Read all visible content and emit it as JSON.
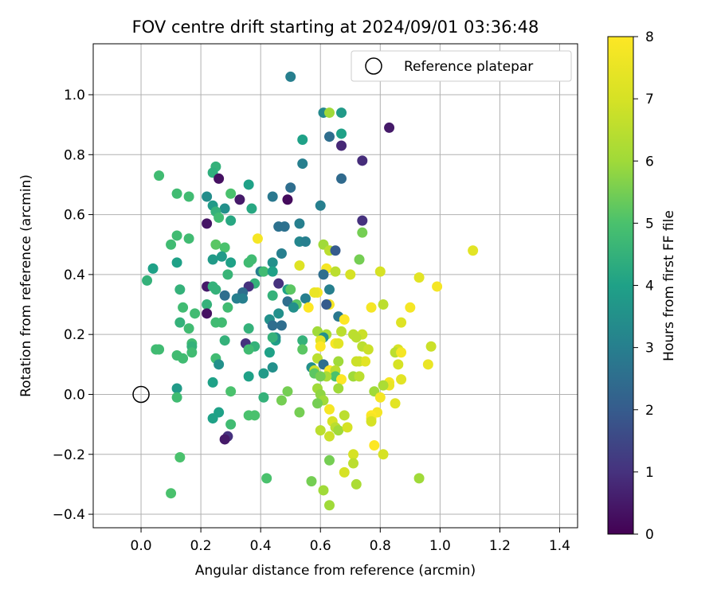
{
  "chart_data": {
    "type": "scatter",
    "title": "FOV centre drift starting at 2024/09/01 03:36:48",
    "xlabel": "Angular distance from reference (arcmin)",
    "ylabel": "Rotation from reference (arcmin)",
    "xlim": [
      -0.16,
      1.46
    ],
    "ylim": [
      -0.445,
      1.17
    ],
    "xticks": [
      "0.0",
      "0.2",
      "0.4",
      "0.6",
      "0.8",
      "1.0",
      "1.2",
      "1.4"
    ],
    "xtick_values": [
      0,
      0.2,
      0.4,
      0.6,
      0.8,
      1.0,
      1.2,
      1.4
    ],
    "yticks": [
      "−0.4",
      "−0.2",
      "0.0",
      "0.2",
      "0.4",
      "0.6",
      "0.8",
      "1.0"
    ],
    "ytick_values": [
      -0.4,
      -0.2,
      0,
      0.2,
      0.4,
      0.6,
      0.8,
      1.0
    ],
    "grid": true,
    "legend": {
      "placement": "top-right",
      "entries": [
        "Reference platepar"
      ]
    },
    "reference_point": {
      "x": 0,
      "y": 0
    },
    "colorbar": {
      "label": "Hours from first FF file",
      "colormap": "viridis",
      "range": [
        0,
        8
      ],
      "ticks": [
        "0",
        "1",
        "2",
        "3",
        "4",
        "5",
        "6",
        "7",
        "8"
      ]
    },
    "points": [
      [
        0.5,
        1.06,
        3.0
      ],
      [
        0.83,
        0.89,
        0.5
      ],
      [
        0.61,
        0.94,
        3.3
      ],
      [
        0.63,
        0.94,
        6.0
      ],
      [
        0.67,
        0.94,
        3.8
      ],
      [
        0.63,
        0.86,
        2.5
      ],
      [
        0.67,
        0.87,
        4.0
      ],
      [
        0.67,
        0.83,
        0.8
      ],
      [
        0.54,
        0.85,
        4.0
      ],
      [
        0.74,
        0.78,
        0.9
      ],
      [
        0.25,
        0.76,
        4.5
      ],
      [
        0.24,
        0.74,
        4.4
      ],
      [
        0.06,
        0.73,
        4.8
      ],
      [
        0.54,
        0.77,
        3.0
      ],
      [
        0.26,
        0.72,
        0.3
      ],
      [
        0.67,
        0.72,
        2.4
      ],
      [
        0.36,
        0.7,
        4.0
      ],
      [
        0.12,
        0.67,
        4.8
      ],
      [
        0.3,
        0.67,
        5.0
      ],
      [
        0.44,
        0.66,
        2.8
      ],
      [
        0.16,
        0.66,
        4.8
      ],
      [
        0.22,
        0.66,
        3.4
      ],
      [
        0.5,
        0.69,
        2.5
      ],
      [
        0.33,
        0.65,
        0.5
      ],
      [
        0.6,
        0.63,
        3.0
      ],
      [
        0.49,
        0.65,
        0.2
      ],
      [
        0.24,
        0.63,
        3.8
      ],
      [
        0.28,
        0.62,
        3.5
      ],
      [
        0.37,
        0.62,
        4.2
      ],
      [
        0.25,
        0.61,
        4.5
      ],
      [
        0.26,
        0.59,
        4.8
      ],
      [
        0.22,
        0.57,
        0.4
      ],
      [
        0.3,
        0.58,
        4.2
      ],
      [
        0.74,
        0.58,
        1.0
      ],
      [
        0.53,
        0.57,
        3.0
      ],
      [
        0.46,
        0.56,
        2.6
      ],
      [
        0.48,
        0.56,
        2.6
      ],
      [
        0.12,
        0.53,
        4.8
      ],
      [
        0.74,
        0.54,
        5.5
      ],
      [
        0.16,
        0.52,
        4.8
      ],
      [
        0.39,
        0.52,
        7.8
      ],
      [
        0.53,
        0.51,
        3.2
      ],
      [
        0.55,
        0.51,
        3.0
      ],
      [
        0.1,
        0.5,
        4.8
      ],
      [
        0.25,
        0.5,
        5.2
      ],
      [
        0.61,
        0.5,
        6.0
      ],
      [
        0.28,
        0.49,
        5.0
      ],
      [
        0.63,
        0.48,
        6.5
      ],
      [
        0.65,
        0.48,
        2.0
      ],
      [
        1.11,
        0.48,
        7.3
      ],
      [
        0.47,
        0.47,
        3.0
      ],
      [
        0.27,
        0.46,
        3.8
      ],
      [
        0.37,
        0.45,
        4.8
      ],
      [
        0.24,
        0.45,
        3.8
      ],
      [
        0.73,
        0.45,
        5.5
      ],
      [
        0.3,
        0.44,
        4.0
      ],
      [
        0.12,
        0.44,
        4.0
      ],
      [
        0.36,
        0.44,
        4.8
      ],
      [
        0.44,
        0.44,
        3.5
      ],
      [
        0.53,
        0.43,
        7.2
      ],
      [
        0.04,
        0.42,
        4.0
      ],
      [
        0.62,
        0.42,
        7.8
      ],
      [
        0.65,
        0.41,
        6.5
      ],
      [
        0.8,
        0.41,
        7.0
      ],
      [
        0.4,
        0.41,
        3.0
      ],
      [
        0.29,
        0.4,
        4.6
      ],
      [
        0.41,
        0.41,
        4.8
      ],
      [
        0.44,
        0.41,
        4.0
      ],
      [
        0.61,
        0.4,
        2.5
      ],
      [
        0.7,
        0.4,
        7.0
      ],
      [
        0.93,
        0.39,
        7.3
      ],
      [
        0.02,
        0.38,
        4.5
      ],
      [
        0.46,
        0.37,
        1.0
      ],
      [
        0.38,
        0.37,
        4.5
      ],
      [
        0.22,
        0.36,
        0.5
      ],
      [
        0.24,
        0.36,
        4.5
      ],
      [
        0.36,
        0.36,
        1.0
      ],
      [
        0.13,
        0.35,
        4.5
      ],
      [
        0.25,
        0.35,
        4.5
      ],
      [
        0.49,
        0.35,
        4.0
      ],
      [
        0.5,
        0.35,
        5.2
      ],
      [
        0.63,
        0.35,
        3.0
      ],
      [
        0.99,
        0.36,
        7.8
      ],
      [
        0.59,
        0.34,
        7.8
      ],
      [
        0.58,
        0.34,
        7.5
      ],
      [
        0.34,
        0.34,
        2.5
      ],
      [
        0.28,
        0.33,
        2.5
      ],
      [
        0.44,
        0.33,
        4.5
      ],
      [
        0.32,
        0.32,
        3.0
      ],
      [
        0.34,
        0.32,
        3.0
      ],
      [
        0.55,
        0.32,
        3.0
      ],
      [
        0.49,
        0.31,
        2.5
      ],
      [
        0.52,
        0.3,
        5.2
      ],
      [
        0.22,
        0.3,
        4.5
      ],
      [
        0.14,
        0.29,
        4.8
      ],
      [
        0.29,
        0.29,
        4.8
      ],
      [
        0.63,
        0.3,
        7.8
      ],
      [
        0.62,
        0.3,
        2.0
      ],
      [
        0.56,
        0.29,
        8.0
      ],
      [
        0.51,
        0.29,
        3.5
      ],
      [
        0.77,
        0.29,
        7.8
      ],
      [
        0.9,
        0.29,
        7.8
      ],
      [
        0.81,
        0.3,
        6.5
      ],
      [
        0.46,
        0.27,
        3.5
      ],
      [
        0.22,
        0.27,
        0.3
      ],
      [
        0.18,
        0.27,
        4.8
      ],
      [
        0.66,
        0.26,
        2.8
      ],
      [
        0.68,
        0.25,
        8.0
      ],
      [
        0.43,
        0.25,
        3.5
      ],
      [
        0.25,
        0.24,
        4.8
      ],
      [
        0.27,
        0.24,
        4.8
      ],
      [
        0.44,
        0.23,
        2.5
      ],
      [
        0.47,
        0.23,
        2.5
      ],
      [
        0.36,
        0.22,
        4.5
      ],
      [
        0.13,
        0.24,
        4.5
      ],
      [
        0.87,
        0.24,
        7.2
      ],
      [
        0.16,
        0.22,
        4.8
      ],
      [
        0.59,
        0.21,
        6.0
      ],
      [
        0.62,
        0.2,
        6.2
      ],
      [
        0.61,
        0.19,
        3.5
      ],
      [
        0.67,
        0.21,
        6.5
      ],
      [
        0.71,
        0.2,
        6.5
      ],
      [
        0.74,
        0.2,
        6.8
      ],
      [
        0.45,
        0.18,
        4.0
      ],
      [
        0.45,
        0.19,
        3.5
      ],
      [
        0.72,
        0.19,
        6.5
      ],
      [
        0.17,
        0.17,
        4.8
      ],
      [
        0.28,
        0.18,
        4.5
      ],
      [
        0.54,
        0.18,
        4.5
      ],
      [
        0.6,
        0.18,
        7.3
      ],
      [
        0.65,
        0.17,
        7.8
      ],
      [
        0.66,
        0.17,
        7.3
      ],
      [
        0.44,
        0.19,
        4.5
      ],
      [
        0.35,
        0.17,
        1.0
      ],
      [
        0.6,
        0.16,
        8.0
      ],
      [
        0.17,
        0.16,
        4.5
      ],
      [
        0.38,
        0.16,
        4.5
      ],
      [
        0.36,
        0.15,
        4.8
      ],
      [
        0.54,
        0.15,
        5.2
      ],
      [
        0.74,
        0.16,
        6.5
      ],
      [
        0.76,
        0.15,
        6.8
      ],
      [
        0.97,
        0.16,
        6.8
      ],
      [
        0.06,
        0.15,
        4.8
      ],
      [
        0.05,
        0.15,
        4.8
      ],
      [
        0.17,
        0.14,
        4.8
      ],
      [
        0.86,
        0.15,
        7.0
      ],
      [
        0.85,
        0.14,
        6.5
      ],
      [
        0.87,
        0.14,
        7.8
      ],
      [
        0.43,
        0.14,
        4.0
      ],
      [
        0.12,
        0.13,
        4.8
      ],
      [
        0.25,
        0.12,
        4.8
      ],
      [
        0.14,
        0.12,
        4.8
      ],
      [
        0.59,
        0.12,
        6.5
      ],
      [
        0.73,
        0.11,
        6.8
      ],
      [
        0.75,
        0.11,
        7.3
      ],
      [
        0.66,
        0.11,
        6.0
      ],
      [
        0.72,
        0.11,
        6.8
      ],
      [
        0.61,
        0.1,
        2.5
      ],
      [
        0.86,
        0.1,
        7.0
      ],
      [
        0.26,
        0.1,
        3.5
      ],
      [
        0.44,
        0.09,
        3.5
      ],
      [
        0.96,
        0.1,
        7.5
      ],
      [
        0.57,
        0.09,
        3.5
      ],
      [
        0.63,
        0.08,
        8.0
      ],
      [
        0.58,
        0.08,
        6.8
      ],
      [
        0.65,
        0.08,
        6.5
      ],
      [
        0.41,
        0.07,
        3.8
      ],
      [
        0.36,
        0.06,
        4.0
      ],
      [
        0.65,
        0.06,
        5.0
      ],
      [
        0.71,
        0.06,
        6.0
      ],
      [
        0.73,
        0.06,
        6.5
      ],
      [
        0.62,
        0.06,
        6.2
      ],
      [
        0.58,
        0.07,
        5.2
      ],
      [
        0.6,
        0.06,
        5.5
      ],
      [
        0.87,
        0.05,
        7.3
      ],
      [
        0.67,
        0.05,
        8.0
      ],
      [
        0.24,
        0.04,
        4.0
      ],
      [
        0.83,
        0.04,
        7.8
      ],
      [
        0.83,
        0.03,
        7.5
      ],
      [
        0.81,
        0.03,
        6.2
      ],
      [
        0.12,
        0.02,
        3.8
      ],
      [
        0.59,
        0.02,
        6.0
      ],
      [
        0.66,
        0.02,
        6.0
      ],
      [
        0.3,
        0.01,
        5.0
      ],
      [
        0.49,
        0.01,
        5.5
      ],
      [
        0.78,
        0.01,
        6.0
      ],
      [
        0.6,
        0.0,
        5.8
      ],
      [
        0.41,
        -0.01,
        4.5
      ],
      [
        0.8,
        -0.01,
        7.8
      ],
      [
        0.12,
        -0.01,
        4.8
      ],
      [
        0.61,
        -0.02,
        6.0
      ],
      [
        0.85,
        -0.03,
        7.3
      ],
      [
        0.47,
        -0.02,
        5.5
      ],
      [
        0.59,
        -0.03,
        5.5
      ],
      [
        0.63,
        -0.05,
        7.8
      ],
      [
        0.53,
        -0.06,
        5.5
      ],
      [
        0.26,
        -0.06,
        4.0
      ],
      [
        0.36,
        -0.07,
        5.0
      ],
      [
        0.24,
        -0.08,
        4.0
      ],
      [
        0.79,
        -0.06,
        7.8
      ],
      [
        0.38,
        -0.07,
        5.0
      ],
      [
        0.68,
        -0.07,
        6.5
      ],
      [
        0.77,
        -0.07,
        8.0
      ],
      [
        0.77,
        -0.08,
        7.8
      ],
      [
        0.77,
        -0.09,
        7.0
      ],
      [
        0.64,
        -0.09,
        7.0
      ],
      [
        0.3,
        -0.1,
        4.8
      ],
      [
        0.65,
        -0.11,
        6.5
      ],
      [
        0.6,
        -0.12,
        6.5
      ],
      [
        0.66,
        -0.12,
        6.0
      ],
      [
        0.69,
        -0.11,
        7.0
      ],
      [
        0.29,
        -0.14,
        1.0
      ],
      [
        0.28,
        -0.15,
        0.5
      ],
      [
        0.63,
        -0.14,
        6.8
      ],
      [
        0.78,
        -0.17,
        8.0
      ],
      [
        0.71,
        -0.2,
        7.0
      ],
      [
        0.81,
        -0.2,
        7.0
      ],
      [
        0.13,
        -0.21,
        5.0
      ],
      [
        0.63,
        -0.22,
        5.5
      ],
      [
        0.71,
        -0.23,
        6.5
      ],
      [
        0.68,
        -0.26,
        7.0
      ],
      [
        0.42,
        -0.28,
        5.0
      ],
      [
        0.57,
        -0.29,
        5.5
      ],
      [
        0.72,
        -0.3,
        6.2
      ],
      [
        0.93,
        -0.28,
        6.0
      ],
      [
        0.61,
        -0.32,
        6.0
      ],
      [
        0.1,
        -0.33,
        5.0
      ],
      [
        0.63,
        -0.37,
        6.0
      ]
    ]
  }
}
